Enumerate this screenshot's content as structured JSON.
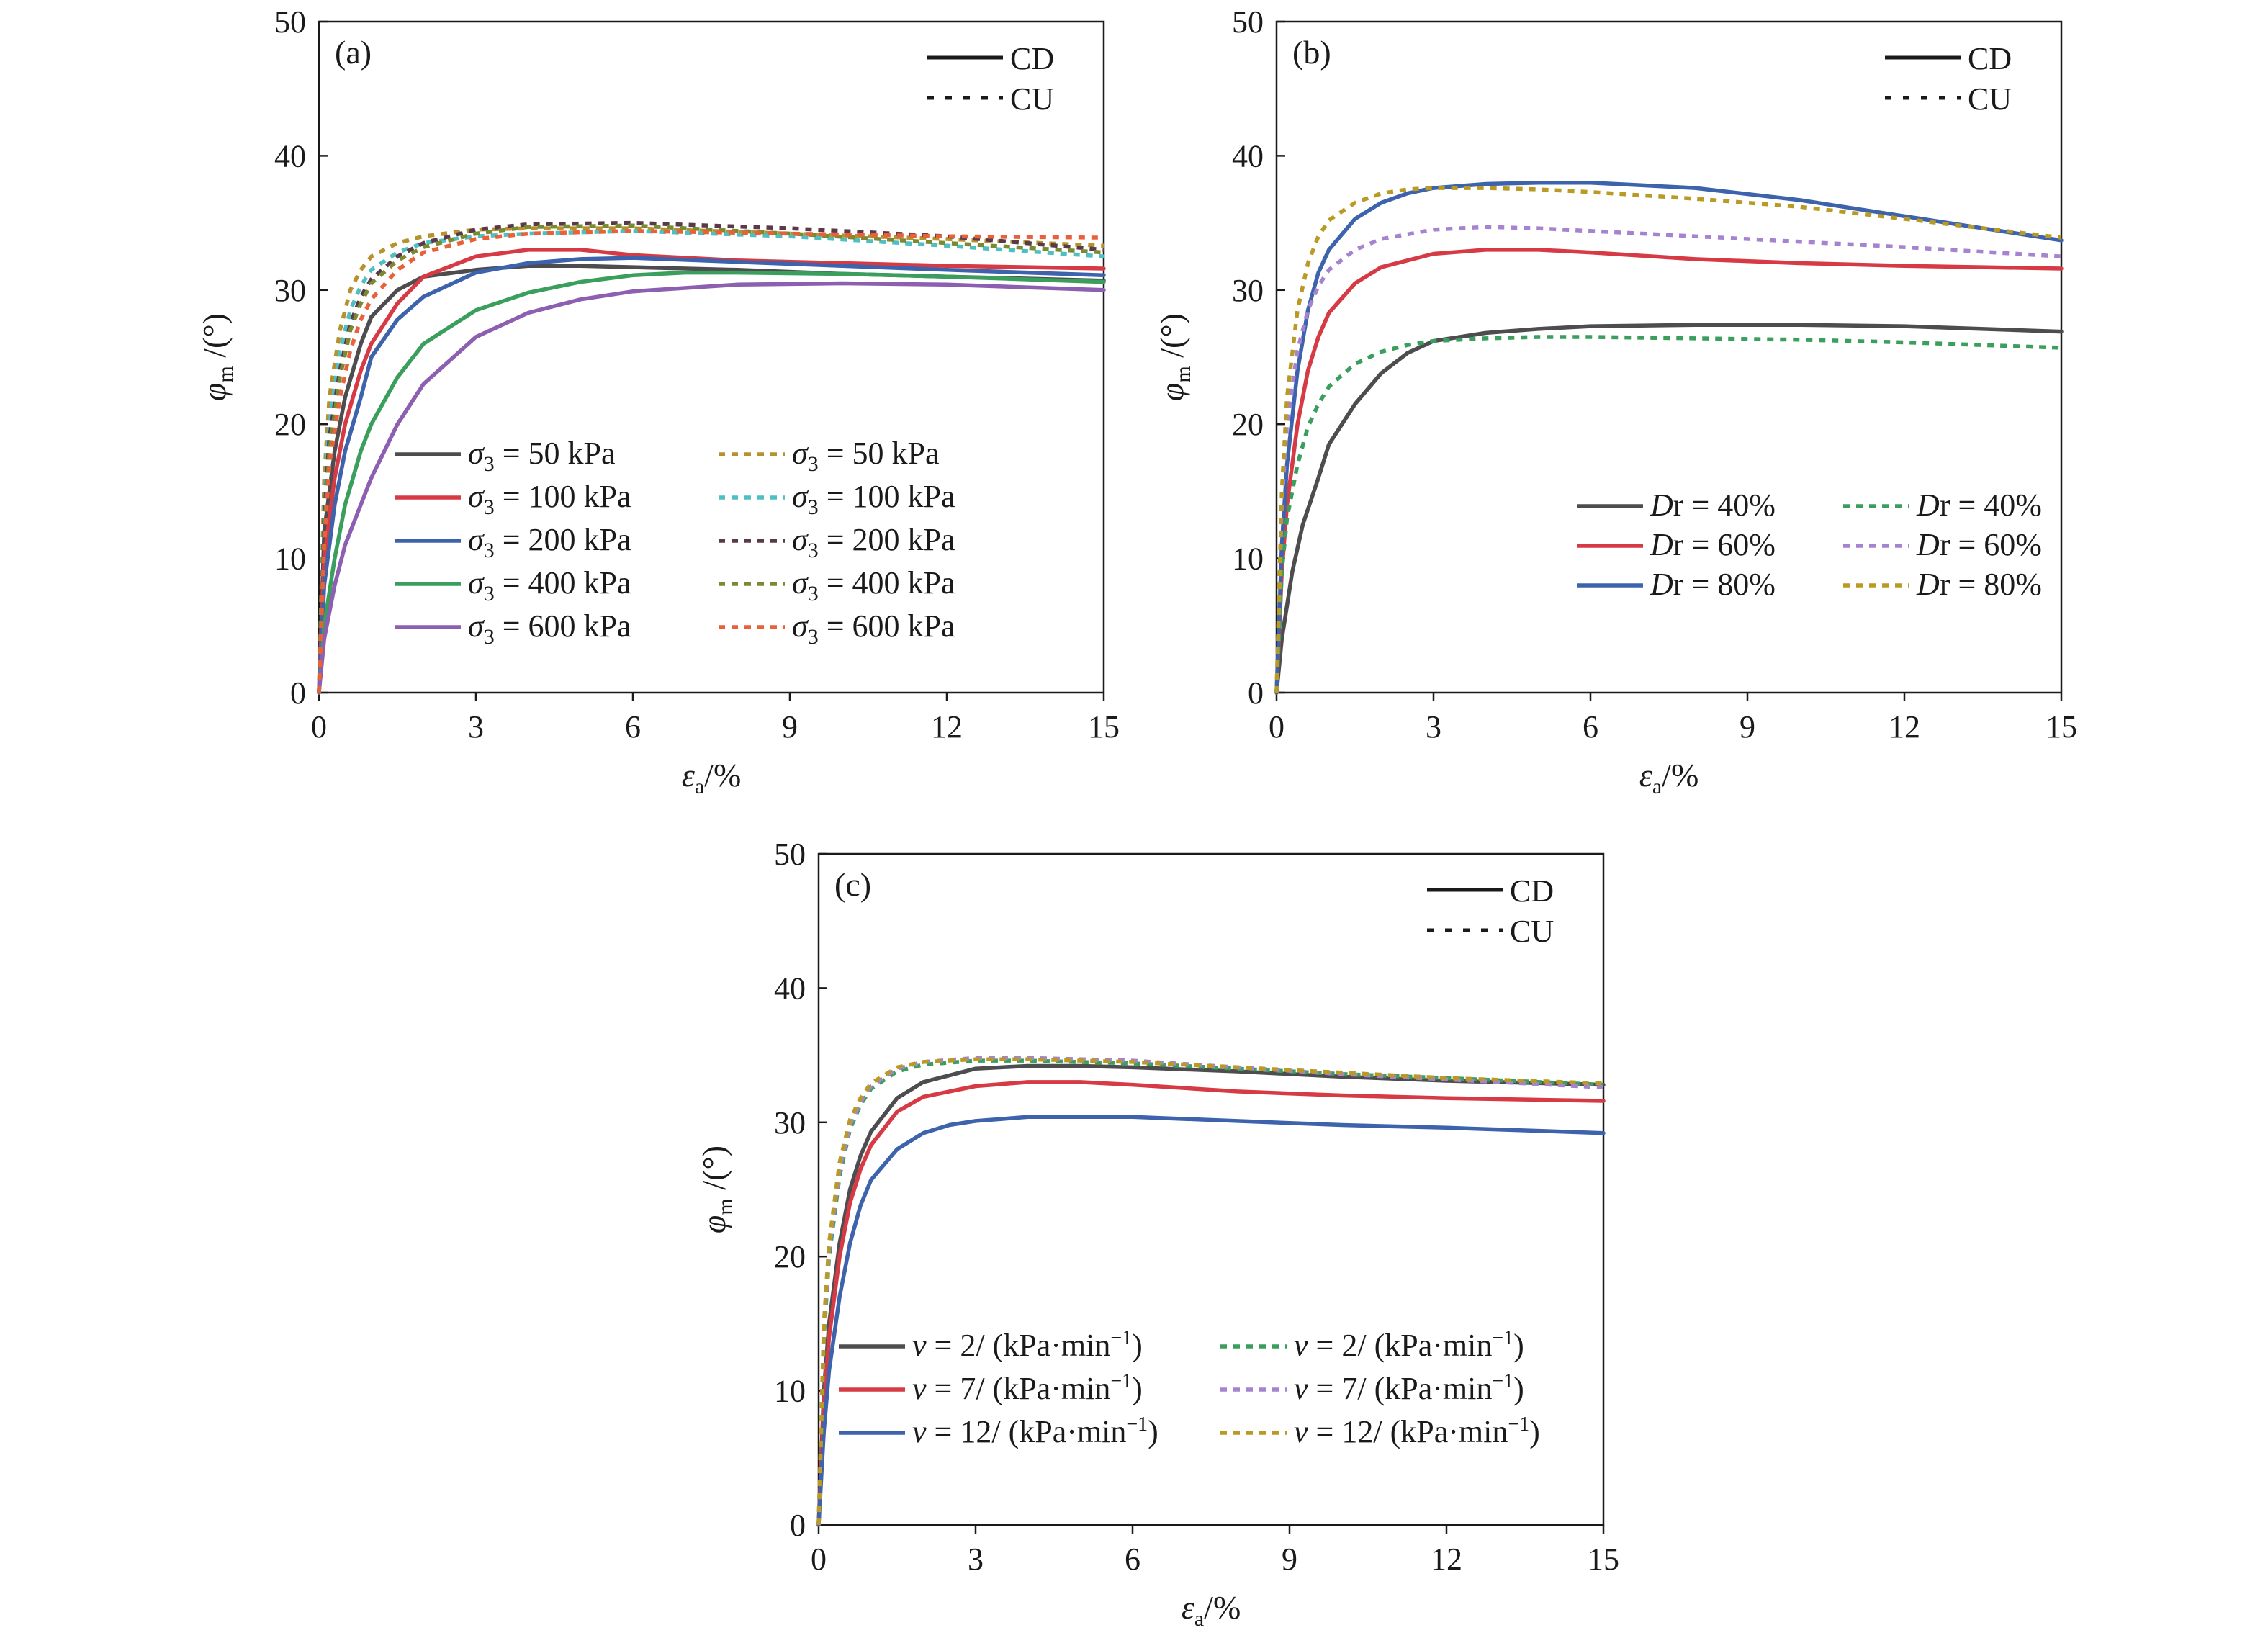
{
  "figure": {
    "line_types": [
      {
        "label": "CD",
        "style": "solid"
      },
      {
        "label": "CU",
        "style": "dotted"
      }
    ]
  },
  "chart_data": [
    {
      "panel_label": "(a)",
      "type": "line",
      "xlabel": {
        "sym": "ε",
        "sub": "a",
        "unit": "/%"
      },
      "ylabel": {
        "sym": "φ",
        "sub": "m",
        "unit": "/(°)"
      },
      "xlim": [
        0,
        15
      ],
      "ylim": [
        0,
        50
      ],
      "xticks": [
        0,
        3,
        6,
        9,
        12,
        15
      ],
      "yticks": [
        0,
        10,
        20,
        30,
        40,
        50
      ],
      "grid": false,
      "legend": {
        "placement": "bottom-right",
        "prefix_sym": "σ",
        "prefix_sub": "3"
      },
      "line_type_legend_placement": "top-right",
      "series": [
        {
          "name": " = 50 kPa",
          "test": "CD",
          "color": "#4d4d4f",
          "x": [
            0,
            0.1,
            0.3,
            0.5,
            0.8,
            1.0,
            1.5,
            2.0,
            3.0,
            4.0,
            5.0,
            6.0,
            8.0,
            10.0,
            12.0,
            15.0
          ],
          "y": [
            0,
            12,
            18,
            22,
            26,
            28,
            30,
            31,
            31.5,
            31.8,
            31.8,
            31.7,
            31.5,
            31.2,
            31.0,
            30.7
          ]
        },
        {
          "name": " = 100 kPa",
          "test": "CD",
          "color": "#d63a44",
          "x": [
            0,
            0.1,
            0.3,
            0.5,
            0.8,
            1.0,
            1.5,
            2.0,
            3.0,
            4.0,
            5.0,
            6.0,
            8.0,
            10.0,
            12.0,
            15.0
          ],
          "y": [
            0,
            10,
            16,
            20,
            24,
            26,
            29,
            31,
            32.5,
            33,
            33,
            32.6,
            32.2,
            32.0,
            31.8,
            31.6
          ]
        },
        {
          "name": " = 200 kPa",
          "test": "CD",
          "color": "#3d63ad",
          "x": [
            0,
            0.1,
            0.3,
            0.5,
            0.8,
            1.0,
            1.5,
            2.0,
            3.0,
            4.0,
            5.0,
            6.0,
            8.0,
            10.0,
            12.0,
            15.0
          ],
          "y": [
            0,
            8,
            14,
            18,
            22,
            25,
            27.8,
            29.5,
            31.3,
            32.0,
            32.3,
            32.4,
            32.1,
            31.8,
            31.5,
            31.1
          ]
        },
        {
          "name": " = 400 kPa",
          "test": "CD",
          "color": "#3a9e5c",
          "x": [
            0,
            0.1,
            0.3,
            0.5,
            0.8,
            1.0,
            1.5,
            2.0,
            3.0,
            4.0,
            5.0,
            6.0,
            7.0,
            8.0,
            10.0,
            12.0,
            15.0
          ],
          "y": [
            0,
            5,
            10,
            14,
            18,
            20,
            23.5,
            26,
            28.5,
            29.8,
            30.6,
            31.1,
            31.3,
            31.3,
            31.2,
            31.0,
            30.6
          ]
        },
        {
          "name": " = 600 kPa",
          "test": "CD",
          "color": "#8c5fb0",
          "x": [
            0,
            0.1,
            0.3,
            0.5,
            0.8,
            1.0,
            1.5,
            2.0,
            3.0,
            4.0,
            5.0,
            6.0,
            8.0,
            10.0,
            12.0,
            15.0
          ],
          "y": [
            0,
            4,
            8,
            11,
            14,
            16,
            20,
            23,
            26.5,
            28.3,
            29.3,
            29.9,
            30.4,
            30.5,
            30.4,
            30.0
          ]
        },
        {
          "name": " = 50 kPa",
          "test": "CU",
          "color": "#b5922c",
          "x": [
            0,
            0.1,
            0.2,
            0.4,
            0.6,
            0.8,
            1.0,
            1.5,
            2.0,
            3.0,
            4.0,
            6.0,
            9.0,
            12.0,
            15.0
          ],
          "y": [
            0,
            16,
            22,
            27,
            30,
            31.5,
            32.5,
            33.5,
            34.0,
            34.5,
            34.6,
            34.6,
            34.2,
            33.8,
            33.3
          ]
        },
        {
          "name": " = 100 kPa",
          "test": "CU",
          "color": "#4fbfc1",
          "x": [
            0,
            0.1,
            0.2,
            0.4,
            0.6,
            0.8,
            1.0,
            1.5,
            2.0,
            3.0,
            4.0,
            6.0,
            9.0,
            12.0,
            15.0
          ],
          "y": [
            0,
            14,
            20,
            25.5,
            28.5,
            30.3,
            31.5,
            32.8,
            33.5,
            34.0,
            34.2,
            34.4,
            34.0,
            33.3,
            32.5
          ]
        },
        {
          "name": " = 200 kPa",
          "test": "CU",
          "color": "#5a3a4a",
          "x": [
            0,
            0.1,
            0.2,
            0.4,
            0.6,
            0.8,
            1.0,
            1.5,
            2.0,
            3.0,
            4.0,
            6.0,
            9.0,
            12.0,
            15.0
          ],
          "y": [
            0,
            13,
            19,
            24,
            27.5,
            29.5,
            30.8,
            32.5,
            33.5,
            34.5,
            34.9,
            35.0,
            34.6,
            34.0,
            33.0
          ]
        },
        {
          "name": " = 400 kPa",
          "test": "CU",
          "color": "#7a8a30",
          "x": [
            0,
            0.1,
            0.2,
            0.4,
            0.6,
            0.8,
            1.0,
            1.5,
            2.0,
            3.0,
            4.0,
            6.0,
            9.0,
            12.0,
            15.0
          ],
          "y": [
            0,
            12,
            18,
            23.5,
            27,
            29,
            30.5,
            32.2,
            33.2,
            34.2,
            34.7,
            34.8,
            34.2,
            33.5,
            32.8
          ]
        },
        {
          "name": " = 600 kPa",
          "test": "CU",
          "color": "#e8613a",
          "x": [
            0,
            0.1,
            0.2,
            0.4,
            0.6,
            0.8,
            1.0,
            1.5,
            2.0,
            3.0,
            4.0,
            6.0,
            9.0,
            12.0,
            15.0
          ],
          "y": [
            0,
            11,
            17,
            22,
            25.5,
            27.8,
            29.3,
            31.5,
            32.8,
            33.8,
            34.2,
            34.4,
            34.2,
            34.0,
            33.9
          ]
        }
      ]
    },
    {
      "panel_label": "(b)",
      "type": "line",
      "xlabel": {
        "sym": "ε",
        "sub": "a",
        "unit": "/%"
      },
      "ylabel": {
        "sym": "φ",
        "sub": "m",
        "unit": "/(°)"
      },
      "xlim": [
        0,
        15
      ],
      "ylim": [
        0,
        50
      ],
      "xticks": [
        0,
        3,
        6,
        9,
        12,
        15
      ],
      "yticks": [
        0,
        10,
        20,
        30,
        40,
        50
      ],
      "grid": false,
      "legend": {
        "placement": "bottom-right",
        "prefix_sym": "D",
        "prefix_rest": "r"
      },
      "line_type_legend_placement": "top-right",
      "series": [
        {
          "name": " = 40%",
          "test": "CD",
          "color": "#4d4d4f",
          "x": [
            0,
            0.1,
            0.3,
            0.5,
            0.8,
            1.0,
            1.5,
            2.0,
            2.5,
            3.0,
            4.0,
            5.0,
            6.0,
            8.0,
            10.0,
            12.0,
            15.0
          ],
          "y": [
            0,
            4,
            9,
            12.5,
            16,
            18.5,
            21.5,
            23.8,
            25.3,
            26.2,
            26.8,
            27.1,
            27.3,
            27.4,
            27.4,
            27.3,
            26.9
          ]
        },
        {
          "name": " = 60%",
          "test": "CD",
          "color": "#d63a44",
          "x": [
            0,
            0.1,
            0.2,
            0.4,
            0.6,
            0.8,
            1.0,
            1.5,
            2.0,
            3.0,
            4.0,
            5.0,
            6.0,
            8.0,
            10.0,
            12.0,
            15.0
          ],
          "y": [
            0,
            9,
            14,
            20,
            24,
            26.5,
            28.3,
            30.5,
            31.7,
            32.7,
            33.0,
            33.0,
            32.8,
            32.3,
            32.0,
            31.8,
            31.6
          ]
        },
        {
          "name": " = 80%",
          "test": "CD",
          "color": "#3d63ad",
          "x": [
            0,
            0.1,
            0.2,
            0.4,
            0.6,
            0.8,
            1.0,
            1.5,
            2.0,
            2.5,
            3.0,
            4.0,
            5.0,
            6.0,
            8.0,
            10.0,
            12.0,
            15.0
          ],
          "y": [
            0,
            11,
            17,
            24,
            28.5,
            31.3,
            33.0,
            35.3,
            36.5,
            37.2,
            37.6,
            37.9,
            38.0,
            38.0,
            37.6,
            36.7,
            35.5,
            33.7
          ]
        },
        {
          "name": " = 40%",
          "test": "CU",
          "color": "#3a9e5c",
          "x": [
            0,
            0.1,
            0.2,
            0.4,
            0.6,
            0.8,
            1.0,
            1.5,
            2.0,
            2.5,
            3.0,
            4.0,
            5.0,
            6.0,
            8.0,
            10.0,
            12.0,
            15.0
          ],
          "y": [
            0,
            9,
            13,
            17,
            19.8,
            21.5,
            22.8,
            24.5,
            25.4,
            25.9,
            26.2,
            26.4,
            26.5,
            26.5,
            26.4,
            26.3,
            26.1,
            25.7
          ]
        },
        {
          "name": " = 60%",
          "test": "CU",
          "color": "#a683cf",
          "x": [
            0,
            0.1,
            0.2,
            0.4,
            0.6,
            0.8,
            1.0,
            1.5,
            2.0,
            3.0,
            4.0,
            5.0,
            6.0,
            8.0,
            10.0,
            12.0,
            15.0
          ],
          "y": [
            0,
            14,
            20,
            25.5,
            28.5,
            30.3,
            31.5,
            33.0,
            33.8,
            34.5,
            34.7,
            34.6,
            34.4,
            34.0,
            33.6,
            33.2,
            32.5
          ]
        },
        {
          "name": " = 80%",
          "test": "CU",
          "color": "#b89a25",
          "x": [
            0,
            0.1,
            0.2,
            0.4,
            0.6,
            0.8,
            1.0,
            1.5,
            2.0,
            2.5,
            3.0,
            4.0,
            5.0,
            6.0,
            8.0,
            10.0,
            12.0,
            15.0
          ],
          "y": [
            0,
            15,
            22,
            28.5,
            32,
            34,
            35.2,
            36.5,
            37.2,
            37.5,
            37.6,
            37.6,
            37.5,
            37.3,
            36.8,
            36.2,
            35.3,
            33.9
          ]
        }
      ]
    },
    {
      "panel_label": "(c)",
      "type": "line",
      "xlabel": {
        "sym": "ε",
        "sub": "a",
        "unit": "/%"
      },
      "ylabel": {
        "sym": "φ",
        "sub": "m",
        "unit": "/(°)"
      },
      "xlim": [
        0,
        15
      ],
      "ylim": [
        0,
        50
      ],
      "xticks": [
        0,
        3,
        6,
        9,
        12,
        15
      ],
      "yticks": [
        0,
        10,
        20,
        30,
        40,
        50
      ],
      "grid": false,
      "legend": {
        "placement": "bottom-left",
        "prefix_sym": "v",
        "unit_base": " (kPa·min",
        "unit_sup": "−1",
        "unit_close": ")"
      },
      "line_type_legend_placement": "top-right",
      "series": [
        {
          "name": " = 2/",
          "test": "CD",
          "color": "#4d4d4f",
          "x": [
            0,
            0.1,
            0.2,
            0.4,
            0.6,
            0.8,
            1.0,
            1.5,
            2.0,
            3.0,
            4.0,
            5.0,
            6.0,
            8.0,
            10.0,
            12.0,
            15.0
          ],
          "y": [
            0,
            10,
            15,
            21,
            25,
            27.5,
            29.3,
            31.8,
            33.0,
            34.0,
            34.2,
            34.2,
            34.1,
            33.8,
            33.4,
            33.1,
            32.8
          ]
        },
        {
          "name": " = 7/",
          "test": "CD",
          "color": "#d63a44",
          "x": [
            0,
            0.1,
            0.2,
            0.4,
            0.6,
            0.8,
            1.0,
            1.5,
            2.0,
            3.0,
            4.0,
            5.0,
            6.0,
            8.0,
            10.0,
            12.0,
            15.0
          ],
          "y": [
            0,
            9,
            14,
            20,
            24,
            26.5,
            28.3,
            30.8,
            31.9,
            32.7,
            33.0,
            33.0,
            32.8,
            32.3,
            32.0,
            31.8,
            31.6
          ]
        },
        {
          "name": " = 12/",
          "test": "CD",
          "color": "#3d63ad",
          "x": [
            0,
            0.1,
            0.2,
            0.4,
            0.6,
            0.8,
            1.0,
            1.5,
            2.0,
            2.5,
            3.0,
            4.0,
            5.0,
            6.0,
            8.0,
            10.0,
            12.0,
            15.0
          ],
          "y": [
            0,
            7,
            11.5,
            17,
            21,
            23.8,
            25.7,
            28.0,
            29.2,
            29.8,
            30.1,
            30.4,
            30.4,
            30.4,
            30.1,
            29.8,
            29.6,
            29.2
          ]
        },
        {
          "name": " = 2/",
          "test": "CU",
          "color": "#3a9e5c",
          "x": [
            0,
            0.1,
            0.2,
            0.4,
            0.6,
            0.8,
            1.0,
            1.5,
            2.0,
            3.0,
            4.0,
            6.0,
            8.0,
            10.0,
            12.0,
            15.0
          ],
          "y": [
            0,
            14,
            20,
            26,
            29.5,
            31.3,
            32.5,
            33.8,
            34.3,
            34.6,
            34.6,
            34.4,
            34.0,
            33.6,
            33.3,
            32.8
          ]
        },
        {
          "name": " = 7/",
          "test": "CU",
          "color": "#a683cf",
          "x": [
            0,
            0.1,
            0.2,
            0.4,
            0.6,
            0.8,
            1.0,
            1.5,
            2.0,
            3.0,
            4.0,
            6.0,
            8.0,
            10.0,
            12.0,
            15.0
          ],
          "y": [
            0,
            14.5,
            20.5,
            26.5,
            29.8,
            31.5,
            32.7,
            34.0,
            34.5,
            34.8,
            34.8,
            34.6,
            34.1,
            33.6,
            33.2,
            32.6
          ]
        },
        {
          "name": " = 12/",
          "test": "CU",
          "color": "#b89a25",
          "x": [
            0,
            0.1,
            0.2,
            0.4,
            0.6,
            0.8,
            1.0,
            1.5,
            2.0,
            3.0,
            4.0,
            6.0,
            8.0,
            10.0,
            12.0,
            15.0
          ],
          "y": [
            0,
            15,
            21,
            27,
            30.2,
            31.8,
            32.9,
            34.1,
            34.5,
            34.7,
            34.7,
            34.5,
            34.1,
            33.7,
            33.3,
            32.9
          ]
        }
      ]
    }
  ]
}
